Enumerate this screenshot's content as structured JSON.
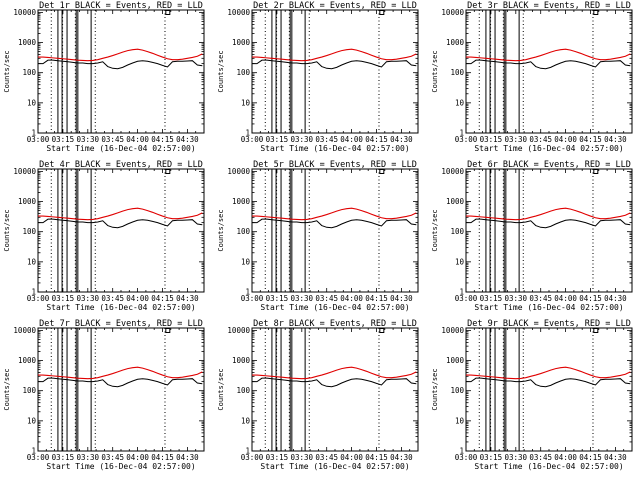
{
  "chart_data": {
    "type": "line",
    "layout": {
      "rows": 3,
      "cols": 3
    },
    "x_ticks": [
      "03:00",
      "03:15",
      "03:30",
      "03:45",
      "04:00",
      "04:15",
      "04:30"
    ],
    "x_tick_minutes": [
      0,
      15,
      30,
      45,
      60,
      75,
      90
    ],
    "xlim_minutes": [
      0,
      100
    ],
    "y_ticks": [
      1,
      10,
      100,
      1000,
      10000
    ],
    "y_tick_labels": [
      "1",
      "10",
      "100",
      "1000",
      "10000"
    ],
    "ylim": [
      1,
      12000
    ],
    "yscale": "log",
    "xlabel": "Start Time (16-Dec-04 02:57:00)",
    "ylabel": "Counts/sec",
    "series_colors": {
      "events": "#000000",
      "lld": "#e00000"
    },
    "x_minutes": [
      0,
      3,
      6,
      9,
      12,
      15,
      18,
      21,
      24,
      27,
      30,
      33,
      36,
      39,
      42,
      45,
      48,
      51,
      54,
      57,
      60,
      63,
      66,
      69,
      72,
      75,
      78,
      81,
      84,
      87,
      90,
      93,
      96,
      99
    ],
    "vertical_lines_minutes": [
      12,
      14.5,
      17.5,
      23,
      24,
      32
    ],
    "dotted_lines_minutes": [
      8,
      14.8,
      22.5,
      34.5,
      76.5
    ],
    "panels": [
      {
        "title": "Det 1r BLACK = Events, RED = LLD",
        "events": [
          200,
          200,
          260,
          260,
          250,
          240,
          230,
          220,
          210,
          210,
          200,
          200,
          210,
          230,
          160,
          140,
          135,
          150,
          180,
          210,
          240,
          250,
          240,
          220,
          200,
          175,
          155,
          230,
          240,
          240,
          245,
          250,
          180,
          170
        ],
        "lld": [
          330,
          330,
          320,
          310,
          300,
          290,
          280,
          270,
          260,
          255,
          250,
          255,
          270,
          300,
          330,
          370,
          420,
          480,
          540,
          580,
          600,
          560,
          500,
          440,
          380,
          330,
          290,
          270,
          270,
          280,
          300,
          320,
          350,
          420
        ]
      },
      {
        "title": "Det 2r BLACK = Events, RED = LLD",
        "events": [
          200,
          200,
          260,
          260,
          250,
          240,
          230,
          220,
          210,
          210,
          200,
          200,
          210,
          230,
          160,
          140,
          135,
          150,
          180,
          210,
          240,
          250,
          240,
          220,
          200,
          175,
          155,
          230,
          240,
          240,
          245,
          250,
          180,
          170
        ],
        "lld": [
          330,
          330,
          320,
          310,
          300,
          290,
          280,
          270,
          260,
          255,
          250,
          255,
          270,
          300,
          330,
          370,
          420,
          480,
          540,
          580,
          600,
          560,
          500,
          440,
          380,
          330,
          290,
          270,
          270,
          280,
          300,
          320,
          350,
          420
        ]
      },
      {
        "title": "Det 3r BLACK = Events, RED = LLD",
        "events": [
          200,
          200,
          260,
          260,
          250,
          240,
          230,
          220,
          210,
          210,
          200,
          200,
          210,
          230,
          160,
          140,
          135,
          150,
          180,
          210,
          240,
          250,
          240,
          220,
          200,
          175,
          155,
          230,
          240,
          240,
          245,
          250,
          180,
          170
        ],
        "lld": [
          330,
          330,
          320,
          310,
          300,
          290,
          280,
          270,
          260,
          255,
          250,
          255,
          270,
          300,
          330,
          370,
          420,
          480,
          540,
          580,
          600,
          560,
          500,
          440,
          380,
          330,
          290,
          270,
          270,
          280,
          300,
          320,
          350,
          420
        ]
      },
      {
        "title": "Det 4r BLACK = Events, RED = LLD",
        "events": [
          200,
          200,
          260,
          260,
          250,
          240,
          230,
          220,
          210,
          210,
          200,
          200,
          210,
          230,
          160,
          140,
          135,
          150,
          180,
          210,
          240,
          250,
          240,
          220,
          200,
          175,
          155,
          230,
          240,
          240,
          245,
          250,
          180,
          170
        ],
        "lld": [
          330,
          330,
          320,
          310,
          300,
          290,
          280,
          270,
          260,
          255,
          250,
          255,
          270,
          300,
          330,
          370,
          420,
          480,
          540,
          580,
          600,
          560,
          500,
          440,
          380,
          330,
          290,
          270,
          270,
          280,
          300,
          320,
          350,
          420
        ]
      },
      {
        "title": "Det 5r BLACK = Events, RED = LLD",
        "events": [
          200,
          200,
          260,
          260,
          250,
          240,
          230,
          220,
          210,
          210,
          200,
          200,
          210,
          230,
          160,
          140,
          135,
          150,
          180,
          210,
          240,
          250,
          240,
          220,
          200,
          175,
          155,
          230,
          240,
          240,
          245,
          250,
          180,
          170
        ],
        "lld": [
          330,
          330,
          320,
          310,
          300,
          290,
          280,
          270,
          260,
          255,
          250,
          255,
          270,
          300,
          330,
          370,
          420,
          480,
          540,
          580,
          600,
          560,
          500,
          440,
          380,
          330,
          290,
          270,
          270,
          280,
          300,
          320,
          350,
          420
        ]
      },
      {
        "title": "Det 6r BLACK = Events, RED = LLD",
        "events": [
          200,
          200,
          260,
          260,
          250,
          240,
          230,
          220,
          210,
          210,
          200,
          200,
          210,
          230,
          160,
          140,
          135,
          150,
          180,
          210,
          240,
          250,
          240,
          220,
          200,
          175,
          155,
          230,
          240,
          240,
          245,
          250,
          180,
          170
        ],
        "lld": [
          330,
          330,
          320,
          310,
          300,
          290,
          280,
          270,
          260,
          255,
          250,
          255,
          270,
          300,
          330,
          370,
          420,
          480,
          540,
          580,
          600,
          560,
          500,
          440,
          380,
          330,
          290,
          270,
          270,
          280,
          300,
          320,
          350,
          420
        ]
      },
      {
        "title": "Det 7r BLACK = Events, RED = LLD",
        "events": [
          200,
          200,
          260,
          260,
          250,
          240,
          230,
          220,
          210,
          210,
          200,
          200,
          210,
          230,
          160,
          140,
          135,
          150,
          180,
          210,
          240,
          250,
          240,
          220,
          200,
          175,
          155,
          230,
          240,
          240,
          245,
          250,
          180,
          170
        ],
        "lld": [
          330,
          330,
          320,
          310,
          300,
          290,
          280,
          270,
          260,
          255,
          250,
          255,
          270,
          300,
          330,
          370,
          420,
          480,
          540,
          580,
          600,
          560,
          500,
          440,
          380,
          330,
          290,
          270,
          270,
          280,
          300,
          320,
          350,
          420
        ]
      },
      {
        "title": "Det 8r BLACK = Events, RED = LLD",
        "events": [
          200,
          200,
          260,
          260,
          250,
          240,
          230,
          220,
          210,
          210,
          200,
          200,
          210,
          230,
          160,
          140,
          135,
          150,
          180,
          210,
          240,
          250,
          240,
          220,
          200,
          175,
          155,
          230,
          240,
          240,
          245,
          250,
          180,
          170
        ],
        "lld": [
          330,
          330,
          320,
          310,
          300,
          290,
          280,
          270,
          260,
          255,
          250,
          255,
          270,
          300,
          330,
          370,
          420,
          480,
          540,
          580,
          600,
          560,
          500,
          440,
          380,
          330,
          290,
          270,
          270,
          280,
          300,
          320,
          350,
          420
        ]
      },
      {
        "title": "Det 9r BLACK = Events, RED = LLD",
        "events": [
          200,
          200,
          260,
          260,
          250,
          240,
          230,
          220,
          210,
          210,
          200,
          200,
          210,
          230,
          160,
          140,
          135,
          150,
          180,
          210,
          240,
          250,
          240,
          220,
          200,
          175,
          155,
          230,
          240,
          240,
          245,
          250,
          180,
          170
        ],
        "lld": [
          330,
          330,
          320,
          310,
          300,
          290,
          280,
          270,
          260,
          255,
          250,
          255,
          270,
          300,
          330,
          370,
          420,
          480,
          540,
          580,
          600,
          560,
          500,
          440,
          380,
          330,
          290,
          270,
          270,
          280,
          300,
          320,
          350,
          420
        ]
      }
    ]
  }
}
